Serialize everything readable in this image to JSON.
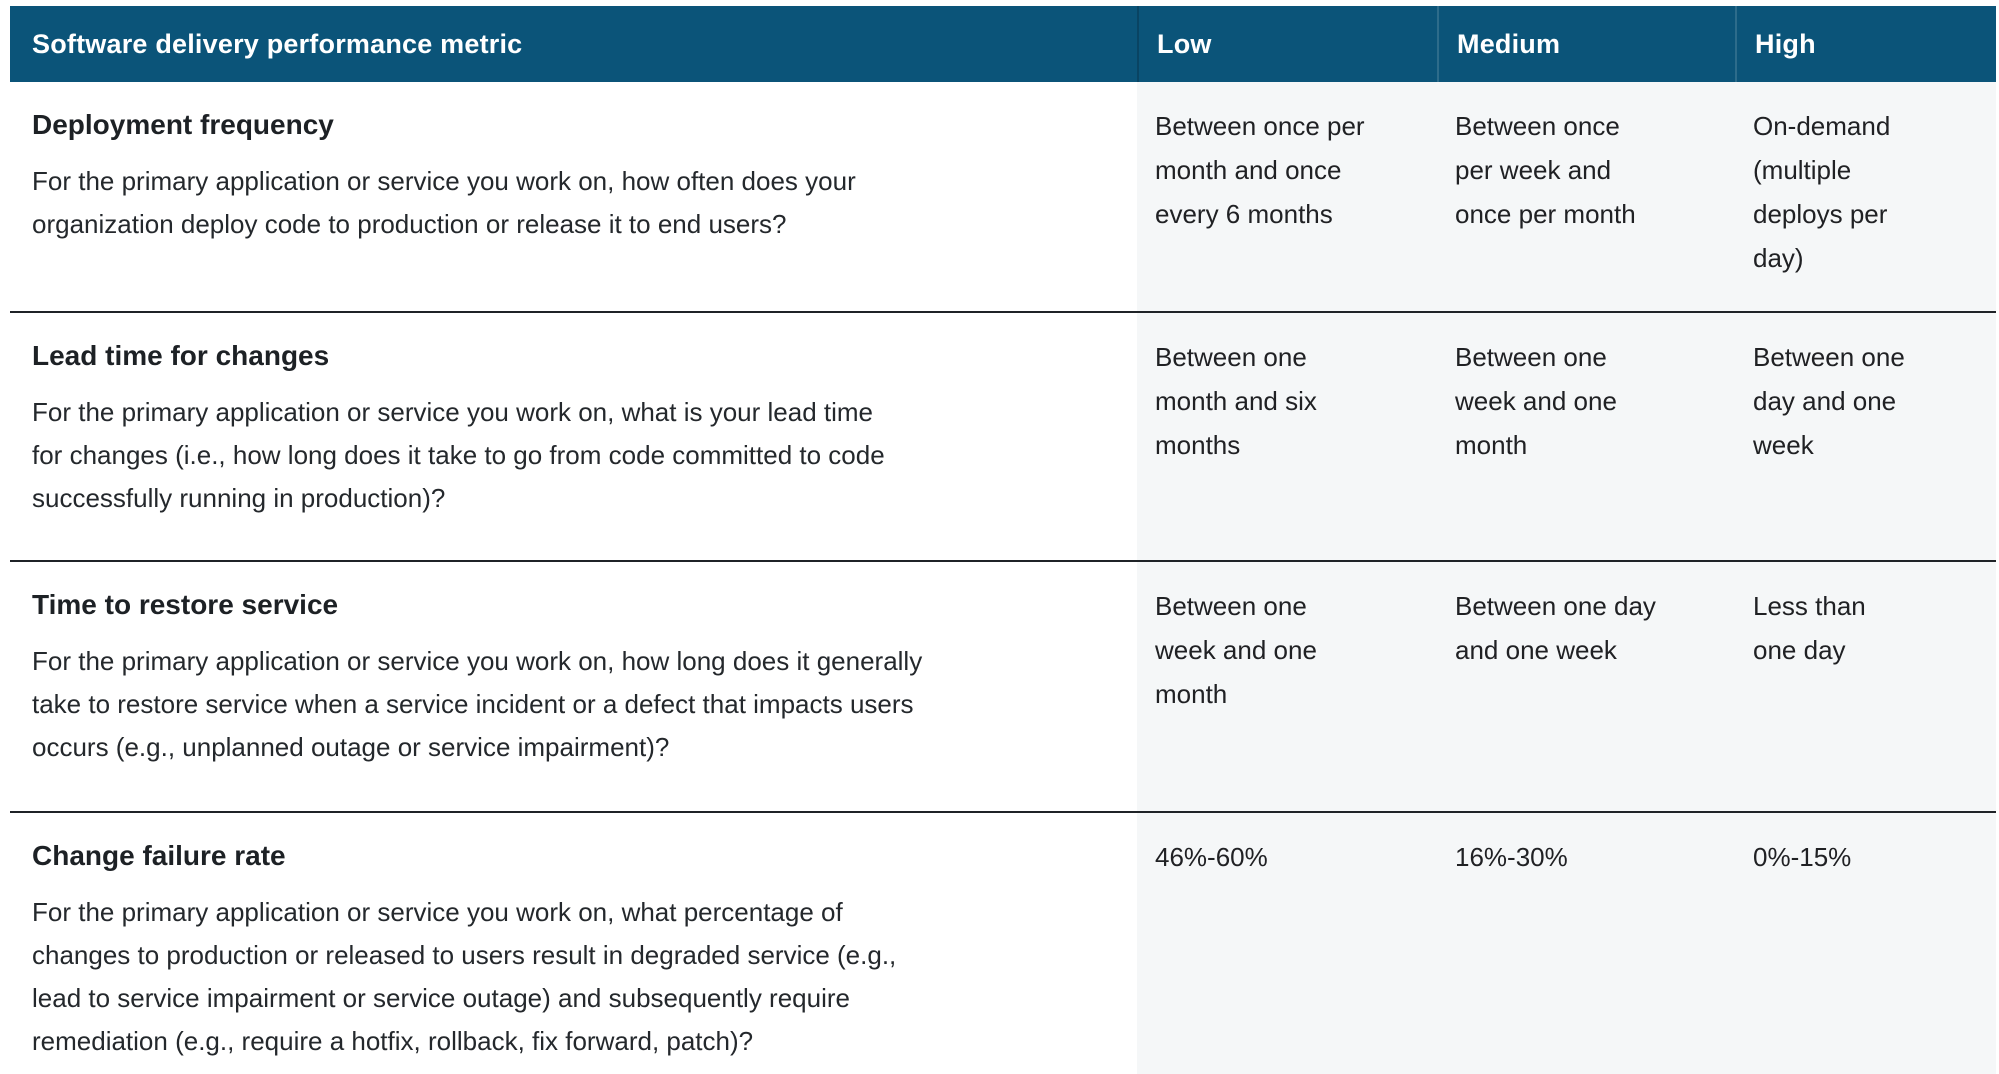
{
  "table": {
    "header": {
      "metric_label": "Software delivery performance metric",
      "low_label": "Low",
      "medium_label": "Medium",
      "high_label": "High"
    },
    "rows": [
      {
        "title": "Deployment frequency",
        "description": "For the primary application or service you work on, how often does your\norganization deploy code to production or release it to end users?",
        "low": "Between once per\nmonth and once\nevery 6 months",
        "medium": "Between once\nper week and\nonce per month",
        "high": "On-demand\n(multiple\ndeploys per\nday)"
      },
      {
        "title": "Lead time for changes",
        "description": "For the primary application or service you work on, what is your lead time\nfor changes (i.e., how long does it take to go from code committed to code\nsuccessfully running in production)?",
        "low": "Between one\nmonth and six\nmonths",
        "medium": "Between one\nweek and one\nmonth",
        "high": "Between one\nday and one\nweek"
      },
      {
        "title": "Time to restore service",
        "description": "For the primary application or service you work on, how long does it generally\ntake to restore service when a service incident or a defect that impacts users\noccurs (e.g., unplanned outage or service impairment)?",
        "low": "Between one\nweek and one\nmonth",
        "medium": "Between one day\nand one week",
        "high": "Less than\none day"
      },
      {
        "title": "Change failure rate",
        "description": "For the primary application or service you work on, what percentage of\nchanges to production or released to users result in degraded service (e.g.,\nlead to service impairment or service outage) and subsequently require\nremediation (e.g., require a hotfix, rollback, fix forward, patch)?",
        "low": "46%-60%",
        "medium": "16%-30%",
        "high": "0%-15%"
      }
    ],
    "colors": {
      "header_bg": "#0b5479",
      "level_cell_bg": "#f5f7f8",
      "row_divider": "#1f2327",
      "header_text": "#ffffff",
      "body_text": "#202124"
    }
  }
}
